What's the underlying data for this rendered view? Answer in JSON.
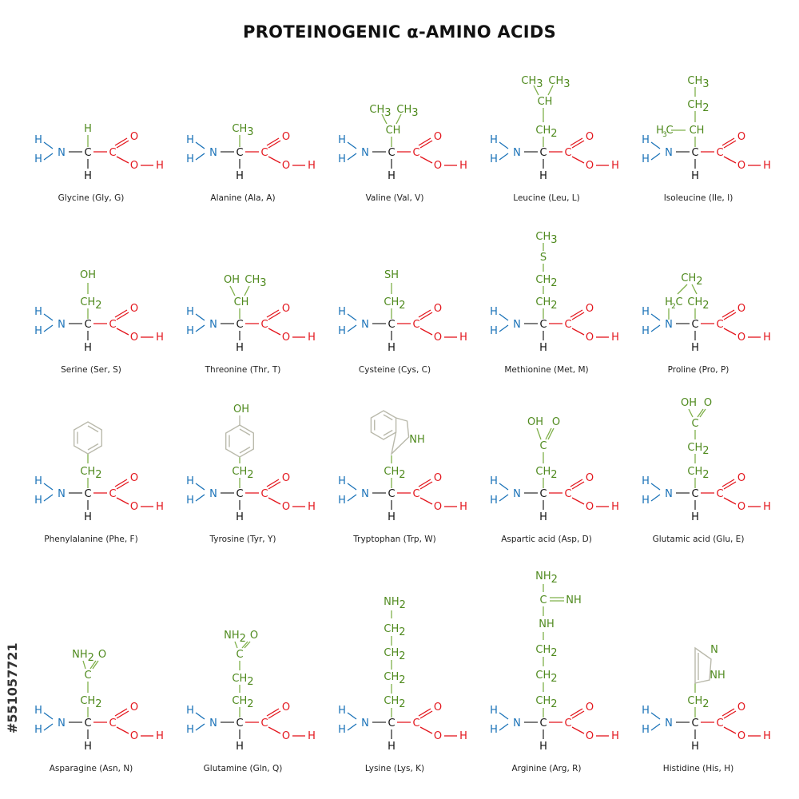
{
  "title": "PROTEINOGENIC α-AMINO ACIDS",
  "watermark_id": "#551057721",
  "colors": {
    "side_chain": "#4f8a1e",
    "amino": "#1a72b8",
    "carboxyl": "#e3151c",
    "backbone": "#111111"
  },
  "backbone_labels": {
    "n": "N",
    "h": "H",
    "c": "C",
    "o": "O"
  },
  "amino_acids": [
    {
      "name": "Glycine (Gly, G)",
      "side_chain": "H"
    },
    {
      "name": "Alanine (Ala, A)",
      "side_chain": "CH3"
    },
    {
      "name": "Valine (Val, V)",
      "side_chain": "CH(CH3)2"
    },
    {
      "name": "Leucine (Leu, L)",
      "side_chain": "CH2-CH(CH3)2"
    },
    {
      "name": "Isoleucine (Ile, I)",
      "side_chain": "CH(CH3)-CH2-CH3"
    },
    {
      "name": "Serine (Ser, S)",
      "side_chain": "CH2-OH"
    },
    {
      "name": "Threonine (Thr, T)",
      "side_chain": "CH(OH)CH3"
    },
    {
      "name": "Cysteine (Cys, C)",
      "side_chain": "CH2-SH"
    },
    {
      "name": "Methionine (Met, M)",
      "side_chain": "CH2-CH2-S-CH3"
    },
    {
      "name": "Proline (Pro, P)",
      "side_chain": "ring CH2-CH2-CH2"
    },
    {
      "name": "Phenylalanine (Phe, F)",
      "side_chain": "CH2-phenyl"
    },
    {
      "name": "Tyrosine (Tyr, Y)",
      "side_chain": "CH2-phenol"
    },
    {
      "name": "Tryptophan (Trp, W)",
      "side_chain": "CH2-indole"
    },
    {
      "name": "Aspartic acid (Asp, D)",
      "side_chain": "CH2-COOH"
    },
    {
      "name": "Glutamic acid (Glu, E)",
      "side_chain": "CH2-CH2-COOH"
    },
    {
      "name": "Asparagine (Asn, N)",
      "side_chain": "CH2-CONH2"
    },
    {
      "name": "Glutamine (Gln, Q)",
      "side_chain": "CH2-CH2-CONH2"
    },
    {
      "name": "Lysine (Lys, K)",
      "side_chain": "(CH2)4-NH2"
    },
    {
      "name": "Arginine (Arg, R)",
      "side_chain": "(CH2)3-NH-C(=NH)-NH2"
    },
    {
      "name": "Histidine (His, H)",
      "side_chain": "CH2-imidazole"
    }
  ]
}
